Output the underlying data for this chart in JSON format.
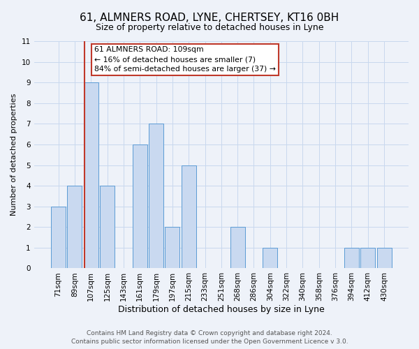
{
  "title1": "61, ALMNERS ROAD, LYNE, CHERTSEY, KT16 0BH",
  "title2": "Size of property relative to detached houses in Lyne",
  "xlabel": "Distribution of detached houses by size in Lyne",
  "ylabel": "Number of detached properties",
  "footer1": "Contains HM Land Registry data © Crown copyright and database right 2024.",
  "footer2": "Contains public sector information licensed under the Open Government Licence v 3.0.",
  "bin_labels": [
    "71sqm",
    "89sqm",
    "107sqm",
    "125sqm",
    "143sqm",
    "161sqm",
    "179sqm",
    "197sqm",
    "215sqm",
    "233sqm",
    "251sqm",
    "268sqm",
    "286sqm",
    "304sqm",
    "322sqm",
    "340sqm",
    "358sqm",
    "376sqm",
    "394sqm",
    "412sqm",
    "430sqm"
  ],
  "bar_values": [
    3,
    4,
    9,
    4,
    0,
    6,
    7,
    2,
    5,
    0,
    0,
    2,
    0,
    1,
    0,
    0,
    0,
    0,
    1,
    1,
    1
  ],
  "marker_index": 2,
  "bar_color": "#c9d9f0",
  "bar_edge_color": "#5b9bd5",
  "marker_color": "#c0392b",
  "annotation_line1": "61 ALMNERS ROAD: 109sqm",
  "annotation_line2": "← 16% of detached houses are smaller (7)",
  "annotation_line3": "84% of semi-detached houses are larger (37) →",
  "annotation_box_color": "white",
  "annotation_box_edge": "#c0392b",
  "grid_color": "#c8d8ee",
  "background_color": "#eef2f9",
  "ylim": [
    0,
    11
  ],
  "yticks": [
    0,
    1,
    2,
    3,
    4,
    5,
    6,
    7,
    8,
    9,
    10,
    11
  ],
  "title1_fontsize": 11,
  "title2_fontsize": 9,
  "xlabel_fontsize": 9,
  "ylabel_fontsize": 8,
  "tick_fontsize": 7.5,
  "footer_fontsize": 6.5
}
